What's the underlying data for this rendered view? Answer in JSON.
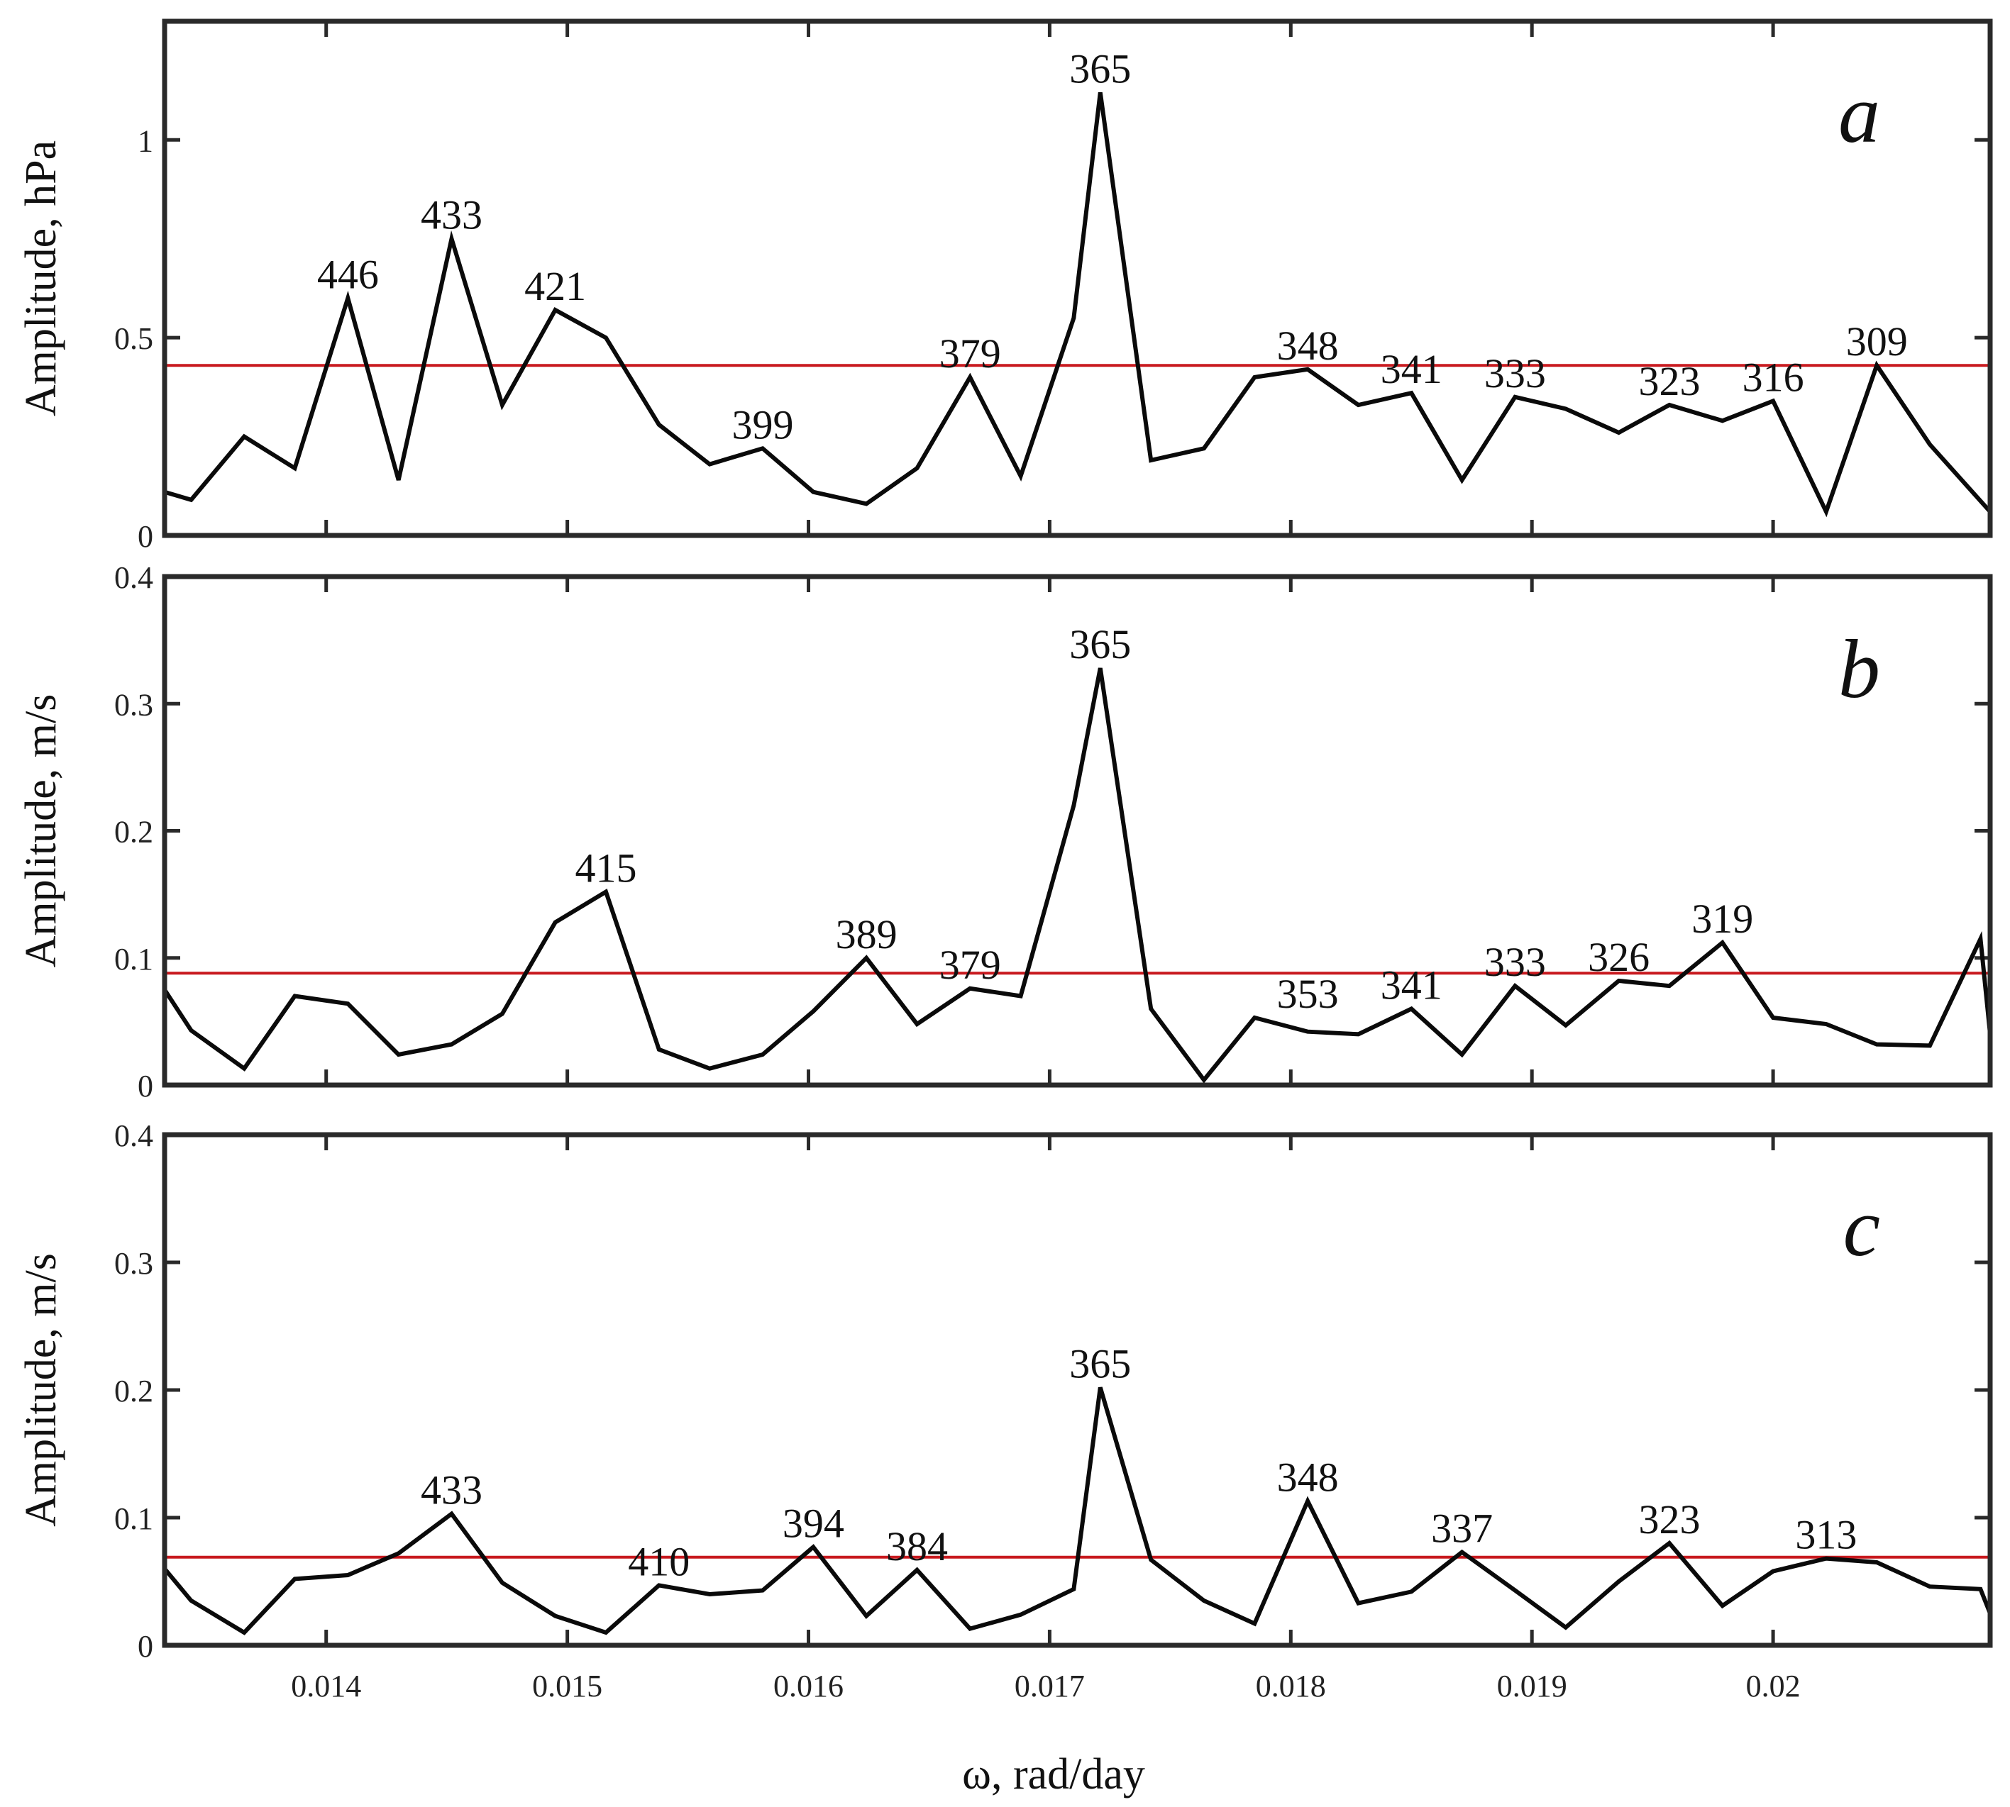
{
  "chart_data": [
    {
      "type": "line",
      "panel": "a",
      "ylabel": "Amplitude, hPa",
      "ylim": [
        0,
        1.3
      ],
      "yticks": [
        0,
        0.5,
        1
      ],
      "ytick_labels": [
        "0",
        "0.5",
        "1"
      ],
      "xlim": [
        0.01333,
        0.0209
      ],
      "threshold": 0.43,
      "series": [
        {
          "name": "amplitude",
          "x": [
            0.01333,
            0.01344,
            0.01366,
            0.01387,
            0.01409,
            0.0143,
            0.01452,
            0.01473,
            0.01495,
            0.01516,
            0.01538,
            0.01559,
            0.01581,
            0.01602,
            0.01624,
            0.01645,
            0.01667,
            0.01688,
            0.0171,
            0.01721,
            0.01742,
            0.01764,
            0.01785,
            0.01807,
            0.01828,
            0.0185,
            0.01871,
            0.01893,
            0.01914,
            0.01936,
            0.01957,
            0.01979,
            0.02,
            0.02022,
            0.02043,
            0.02065,
            0.0209
          ],
          "values": [
            0.11,
            0.09,
            0.25,
            0.17,
            0.6,
            0.14,
            0.75,
            0.33,
            0.57,
            0.5,
            0.28,
            0.18,
            0.22,
            0.11,
            0.08,
            0.17,
            0.4,
            0.15,
            0.55,
            1.12,
            0.19,
            0.22,
            0.4,
            0.42,
            0.33,
            0.36,
            0.14,
            0.35,
            0.32,
            0.26,
            0.33,
            0.29,
            0.34,
            0.06,
            0.43,
            0.23,
            0.06
          ]
        }
      ],
      "annotations": [
        {
          "text": "446",
          "x": 0.01409,
          "y": 0.6
        },
        {
          "text": "433",
          "x": 0.01452,
          "y": 0.75
        },
        {
          "text": "421",
          "x": 0.01495,
          "y": 0.57
        },
        {
          "text": "399",
          "x": 0.01581,
          "y": 0.22
        },
        {
          "text": "379",
          "x": 0.01667,
          "y": 0.4
        },
        {
          "text": "365",
          "x": 0.01721,
          "y": 1.12
        },
        {
          "text": "348",
          "x": 0.01807,
          "y": 0.42
        },
        {
          "text": "341",
          "x": 0.0185,
          "y": 0.36
        },
        {
          "text": "333",
          "x": 0.01893,
          "y": 0.35
        },
        {
          "text": "323",
          "x": 0.01957,
          "y": 0.33
        },
        {
          "text": "316",
          "x": 0.02,
          "y": 0.34
        },
        {
          "text": "309",
          "x": 0.02043,
          "y": 0.43
        }
      ],
      "corner_label": "a"
    },
    {
      "type": "line",
      "panel": "b",
      "ylabel": "Amplitude, m/s",
      "ylim": [
        0,
        0.4
      ],
      "yticks": [
        0,
        0.1,
        0.2,
        0.3,
        0.4
      ],
      "ytick_labels": [
        "0",
        "0.1",
        "0.2",
        "0.3",
        "0.4"
      ],
      "xlim": [
        0.01333,
        0.0209
      ],
      "threshold": 0.088,
      "series": [
        {
          "name": "amplitude",
          "x": [
            0.01333,
            0.01344,
            0.01366,
            0.01387,
            0.01409,
            0.0143,
            0.01452,
            0.01473,
            0.01495,
            0.01516,
            0.01538,
            0.01559,
            0.01581,
            0.01602,
            0.01624,
            0.01645,
            0.01667,
            0.01688,
            0.0171,
            0.01721,
            0.01742,
            0.01764,
            0.01785,
            0.01807,
            0.01828,
            0.0185,
            0.01871,
            0.01893,
            0.01914,
            0.01936,
            0.01957,
            0.01979,
            0.02,
            0.02022,
            0.02043,
            0.02065,
            0.02086,
            0.0209
          ],
          "values": [
            0.075,
            0.043,
            0.013,
            0.07,
            0.064,
            0.024,
            0.032,
            0.056,
            0.128,
            0.152,
            0.028,
            0.013,
            0.024,
            0.058,
            0.1,
            0.048,
            0.076,
            0.07,
            0.22,
            0.328,
            0.06,
            0.004,
            0.053,
            0.042,
            0.04,
            0.06,
            0.024,
            0.078,
            0.047,
            0.082,
            0.078,
            0.112,
            0.053,
            0.048,
            0.032,
            0.031,
            0.115,
            0.04
          ]
        }
      ],
      "annotations": [
        {
          "text": "415",
          "x": 0.01516,
          "y": 0.152
        },
        {
          "text": "389",
          "x": 0.01624,
          "y": 0.1
        },
        {
          "text": "379",
          "x": 0.01667,
          "y": 0.076
        },
        {
          "text": "365",
          "x": 0.01721,
          "y": 0.328
        },
        {
          "text": "353",
          "x": 0.01807,
          "y": 0.053
        },
        {
          "text": "341",
          "x": 0.0185,
          "y": 0.06
        },
        {
          "text": "333",
          "x": 0.01893,
          "y": 0.078
        },
        {
          "text": "326",
          "x": 0.01936,
          "y": 0.082
        },
        {
          "text": "319",
          "x": 0.01979,
          "y": 0.112
        }
      ],
      "corner_label": "b"
    },
    {
      "type": "line",
      "panel": "c",
      "ylabel": "Amplitude, m/s",
      "ylim": [
        0,
        0.4
      ],
      "yticks": [
        0,
        0.1,
        0.2,
        0.3,
        0.4
      ],
      "ytick_labels": [
        "0",
        "0.1",
        "0.2",
        "0.3",
        "0.4"
      ],
      "xlim": [
        0.01333,
        0.0209
      ],
      "xticks": [
        0.014,
        0.015,
        0.016,
        0.017,
        0.018,
        0.019,
        0.02
      ],
      "xtick_labels": [
        "0.014",
        "0.015",
        "0.016",
        "0.017",
        "0.018",
        "0.019",
        "0.02"
      ],
      "xlabel": "ω, rad/day",
      "threshold": 0.069,
      "series": [
        {
          "name": "amplitude",
          "x": [
            0.01333,
            0.01344,
            0.01366,
            0.01387,
            0.01409,
            0.0143,
            0.01452,
            0.01473,
            0.01495,
            0.01516,
            0.01538,
            0.01559,
            0.01581,
            0.01602,
            0.01624,
            0.01645,
            0.01667,
            0.01688,
            0.0171,
            0.01721,
            0.01742,
            0.01764,
            0.01785,
            0.01807,
            0.01828,
            0.0185,
            0.01871,
            0.01893,
            0.01914,
            0.01936,
            0.01957,
            0.01979,
            0.02,
            0.02022,
            0.02043,
            0.02065,
            0.02086,
            0.0209
          ],
          "values": [
            0.06,
            0.035,
            0.01,
            0.052,
            0.055,
            0.072,
            0.103,
            0.049,
            0.023,
            0.01,
            0.047,
            0.04,
            0.043,
            0.077,
            0.023,
            0.059,
            0.013,
            0.024,
            0.044,
            0.202,
            0.067,
            0.035,
            0.017,
            0.113,
            0.033,
            0.042,
            0.073,
            0.043,
            0.014,
            0.05,
            0.08,
            0.031,
            0.058,
            0.068,
            0.065,
            0.046,
            0.044,
            0.025
          ]
        }
      ],
      "annotations": [
        {
          "text": "433",
          "x": 0.01452,
          "y": 0.103
        },
        {
          "text": "410",
          "x": 0.01538,
          "y": 0.047
        },
        {
          "text": "394",
          "x": 0.01602,
          "y": 0.077
        },
        {
          "text": "384",
          "x": 0.01645,
          "y": 0.059
        },
        {
          "text": "365",
          "x": 0.01721,
          "y": 0.202
        },
        {
          "text": "348",
          "x": 0.01807,
          "y": 0.113
        },
        {
          "text": "337",
          "x": 0.01871,
          "y": 0.073
        },
        {
          "text": "323",
          "x": 0.01957,
          "y": 0.08
        },
        {
          "text": "313",
          "x": 0.02022,
          "y": 0.068
        }
      ],
      "corner_label": "c"
    }
  ],
  "colors": {
    "line": "#0a0a0a",
    "threshold": "#c8191e",
    "frame": "#2a2a2a"
  }
}
